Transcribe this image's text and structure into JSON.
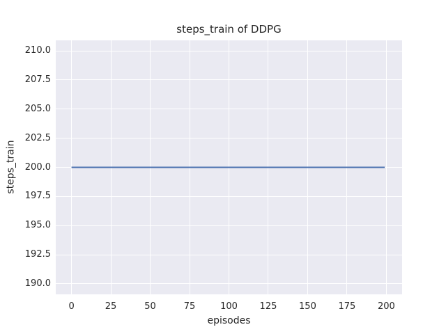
{
  "chart_data": {
    "type": "line",
    "title": "steps_train of DDPG",
    "xlabel": "episodes",
    "ylabel": "steps_train",
    "x_ticks": [
      0,
      25,
      50,
      75,
      100,
      125,
      150,
      175,
      200
    ],
    "x_tick_labels": [
      "0",
      "25",
      "50",
      "75",
      "100",
      "125",
      "150",
      "175",
      "200"
    ],
    "y_ticks": [
      190.0,
      192.5,
      195.0,
      197.5,
      200.0,
      202.5,
      205.0,
      207.5,
      210.0
    ],
    "y_tick_labels": [
      "190.0",
      "192.5",
      "195.0",
      "197.5",
      "200.0",
      "202.5",
      "205.0",
      "207.5",
      "210.0"
    ],
    "xlim": [
      -10,
      210
    ],
    "ylim": [
      189.1,
      210.9
    ],
    "grid": true,
    "legend_position": "none",
    "plot_background": "#eaeaf2",
    "grid_color": "#ffffff",
    "text_color": "#262626",
    "figure_background": "#ffffff",
    "series": [
      {
        "name": "steps_train",
        "color": "#4c72b0",
        "line_width": 2,
        "x": [
          0,
          199
        ],
        "y": [
          200,
          200
        ]
      }
    ]
  }
}
